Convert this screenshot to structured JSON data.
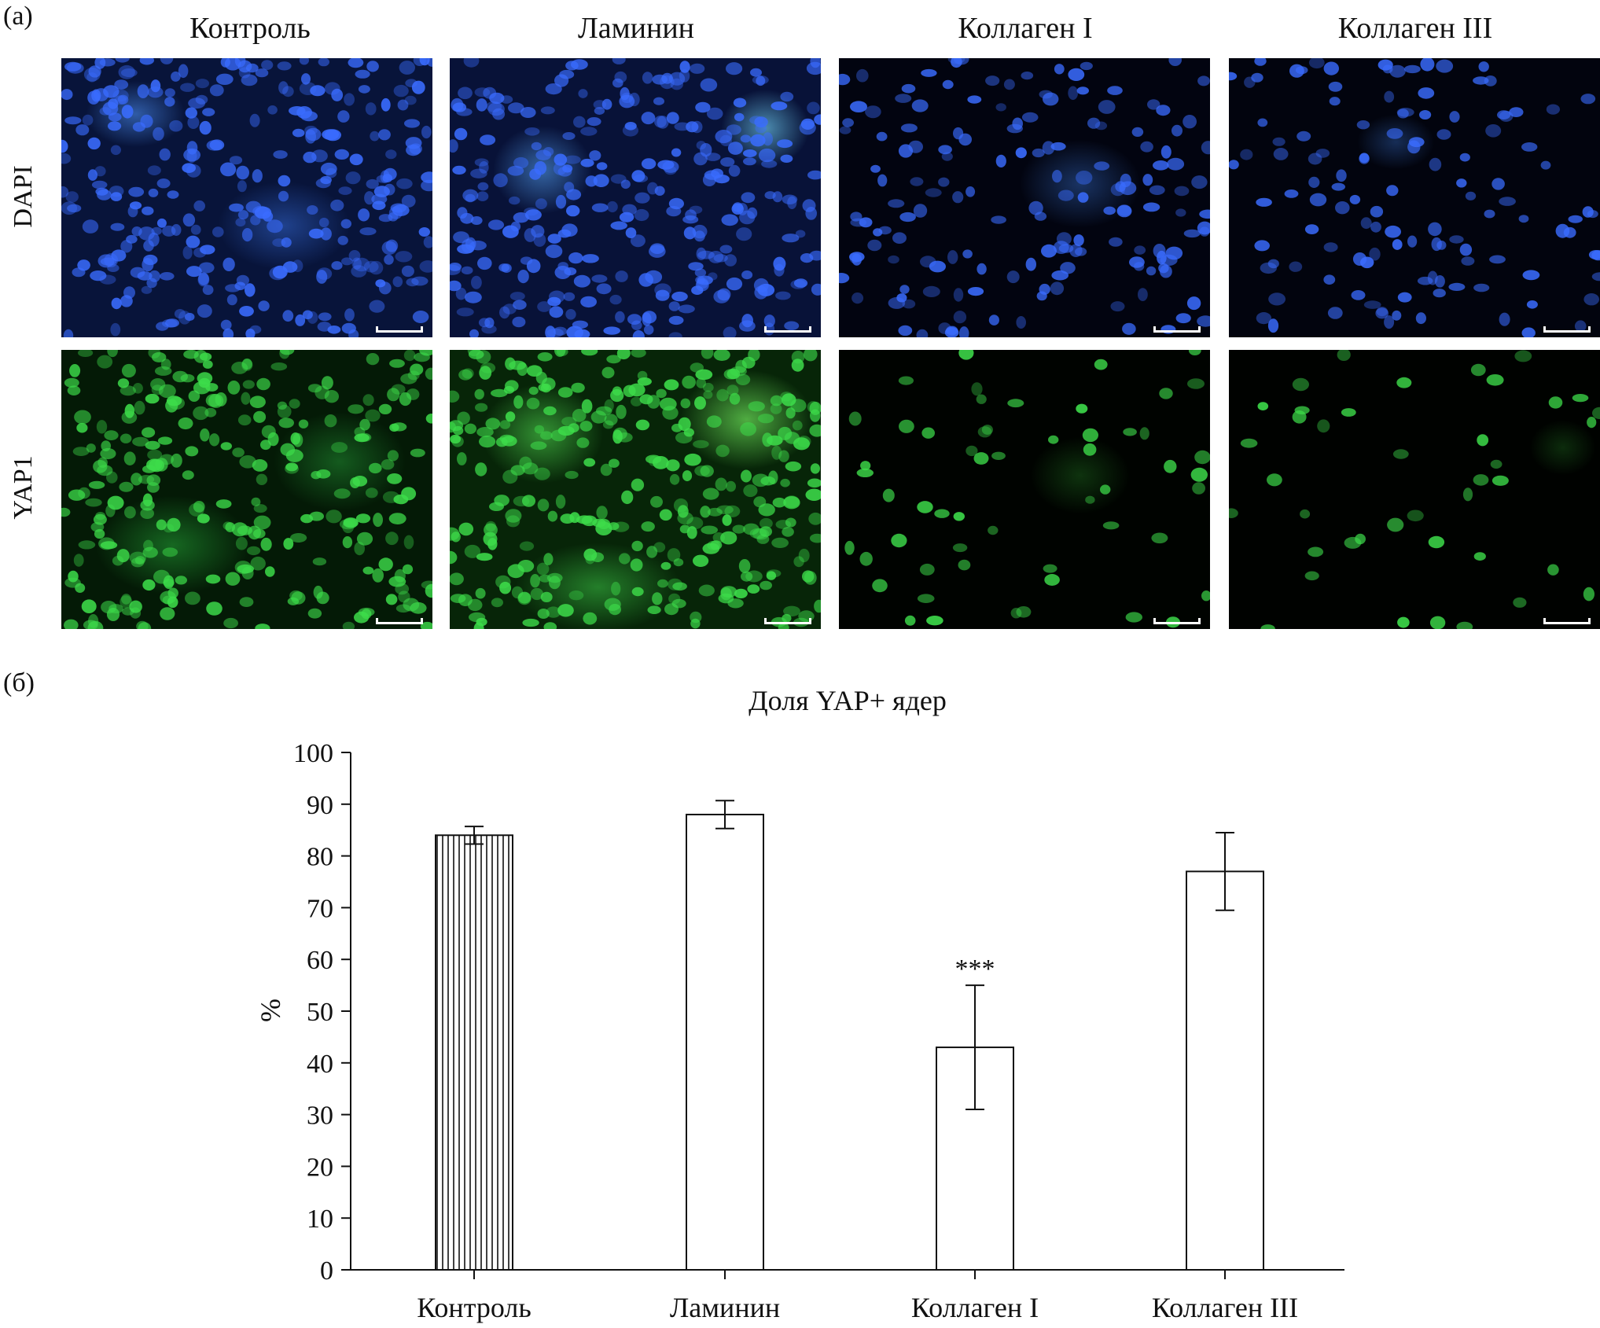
{
  "panel_a": {
    "label": "(а)",
    "columns": [
      "Контроль",
      "Ламинин",
      "Коллаген I",
      "Коллаген III"
    ],
    "rows": [
      "DAPI",
      "YAP1"
    ],
    "colors": {
      "dapi": "#3a6cff",
      "yap1": "#3ddc4a"
    }
  },
  "panel_b": {
    "label": "(б)"
  },
  "chart_data": {
    "type": "bar",
    "title": "Доля YAP+ ядер",
    "xlabel": "",
    "ylabel": "%",
    "ylim": [
      0,
      100
    ],
    "yticks": [
      0,
      10,
      20,
      30,
      40,
      50,
      60,
      70,
      80,
      90,
      100
    ],
    "categories": [
      "Контроль",
      "Ламинин",
      "Коллаген I",
      "Коллаген III"
    ],
    "values": [
      84,
      88,
      43,
      77
    ],
    "errors": [
      1.7,
      2.7,
      12,
      7.5
    ],
    "fills": [
      "vertical-hatch",
      "white",
      "white",
      "white"
    ],
    "annotations": [
      {
        "category": "Коллаген I",
        "text": "***"
      }
    ],
    "grid": false
  }
}
